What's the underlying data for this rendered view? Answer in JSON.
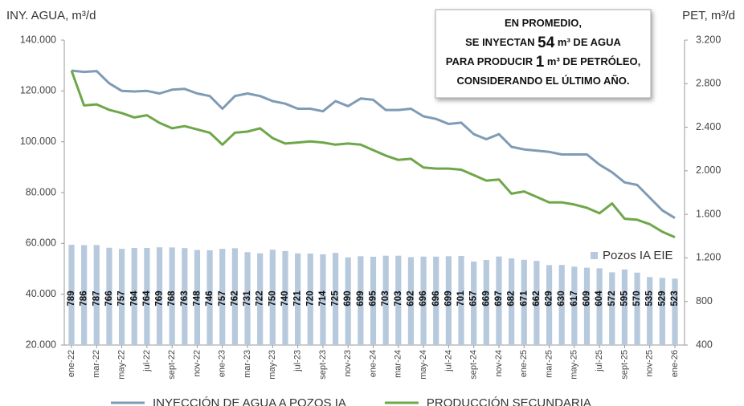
{
  "chart_data": {
    "type": "combo",
    "y_label": "INY. AGUA, m³/d",
    "y2_label": "PET, m³/d",
    "annotation": [
      [
        "EN PROMEDIO,"
      ],
      [
        "SE INYECTAN ",
        "54",
        " m³ DE AGUA"
      ],
      [
        "PARA PRODUCIR ",
        "1",
        " m³ DE PETRÓLEO,"
      ],
      [
        "CONSIDERANDO EL ÚLTIMO AÑO."
      ]
    ],
    "categories": [
      "ene-22",
      null,
      "mar-22",
      null,
      "may-22",
      null,
      "jul-22",
      null,
      "sept-22",
      null,
      "nov-22",
      null,
      "ene-23",
      null,
      "mar-23",
      null,
      "may-23",
      null,
      "jul-23",
      null,
      "sept-23",
      null,
      "nov-23",
      null,
      "ene-24",
      null,
      "mar-24",
      null,
      "may-24",
      null,
      "jul-24",
      null,
      "sept-24",
      null,
      "nov-24",
      null,
      "ene-25",
      null,
      "mar-25",
      null,
      "may-25",
      null,
      "jul-25",
      null,
      "sept-25",
      null,
      "nov-25",
      null,
      "ene-26"
    ],
    "ylim": [
      20000,
      140000
    ],
    "yticks": [
      {
        "value": 20000,
        "label": "20.000"
      },
      {
        "value": 40000,
        "label": "40.000"
      },
      {
        "value": 60000,
        "label": "60.000"
      },
      {
        "value": 80000,
        "label": "80.000"
      },
      {
        "value": 100000,
        "label": "100.000"
      },
      {
        "value": 120000,
        "label": "120.000"
      },
      {
        "value": 140000,
        "label": "140.000"
      }
    ],
    "y2lim": [
      400,
      3200
    ],
    "y2ticks": [
      400,
      800,
      {
        "value": 1200,
        "label": "1.200"
      },
      {
        "value": 1600,
        "label": "1.600"
      },
      {
        "value": 2000,
        "label": "2.000"
      },
      {
        "value": 2400,
        "label": "2.400"
      },
      {
        "value": 2800,
        "label": "2.800"
      },
      {
        "value": 3200,
        "label": "3.200"
      }
    ],
    "y3lim": [
      0,
      2400
    ],
    "series": [
      {
        "name": "Pozos IA EIE",
        "type": "bar",
        "axis": "y3",
        "color": "#b7c9dc",
        "values": [
          789,
          786,
          787,
          766,
          757,
          764,
          764,
          769,
          768,
          763,
          748,
          746,
          757,
          762,
          731,
          722,
          750,
          740,
          721,
          720,
          714,
          725,
          690,
          699,
          695,
          703,
          703,
          692,
          696,
          696,
          699,
          701,
          657,
          669,
          697,
          682,
          671,
          662,
          629,
          630,
          617,
          609,
          604,
          572,
          595,
          570,
          535,
          529,
          523
        ]
      },
      {
        "name": "INYECCIÓN DE AGUA A POZOS IA",
        "type": "line",
        "axis": "y",
        "color": "#7f9bb6",
        "values": [
          128000,
          127500,
          127800,
          123000,
          120000,
          119800,
          120000,
          119000,
          120500,
          120800,
          119000,
          118000,
          113000,
          118000,
          119000,
          118000,
          116000,
          115000,
          113000,
          113000,
          112000,
          116000,
          114000,
          117000,
          116500,
          112500,
          112500,
          113000,
          110000,
          109000,
          107000,
          107500,
          103000,
          101000,
          103000,
          98000,
          97000,
          96500,
          96000,
          95000,
          95000,
          95000,
          91000,
          88000,
          84000,
          83000,
          78000,
          73000,
          70000
        ]
      },
      {
        "name": "PRODUCCIÓN SECUNDARIA",
        "type": "line",
        "axis": "y2",
        "color": "#6ea74a",
        "values": [
          2920,
          2600,
          2610,
          2560,
          2530,
          2490,
          2510,
          2440,
          2390,
          2410,
          2380,
          2350,
          2240,
          2350,
          2360,
          2390,
          2300,
          2250,
          2260,
          2270,
          2260,
          2240,
          2250,
          2240,
          2190,
          2140,
          2100,
          2110,
          2030,
          2020,
          2020,
          2010,
          1960,
          1910,
          1920,
          1790,
          1810,
          1760,
          1710,
          1710,
          1690,
          1660,
          1610,
          1700,
          1560,
          1550,
          1510,
          1440,
          1390
        ]
      }
    ]
  }
}
